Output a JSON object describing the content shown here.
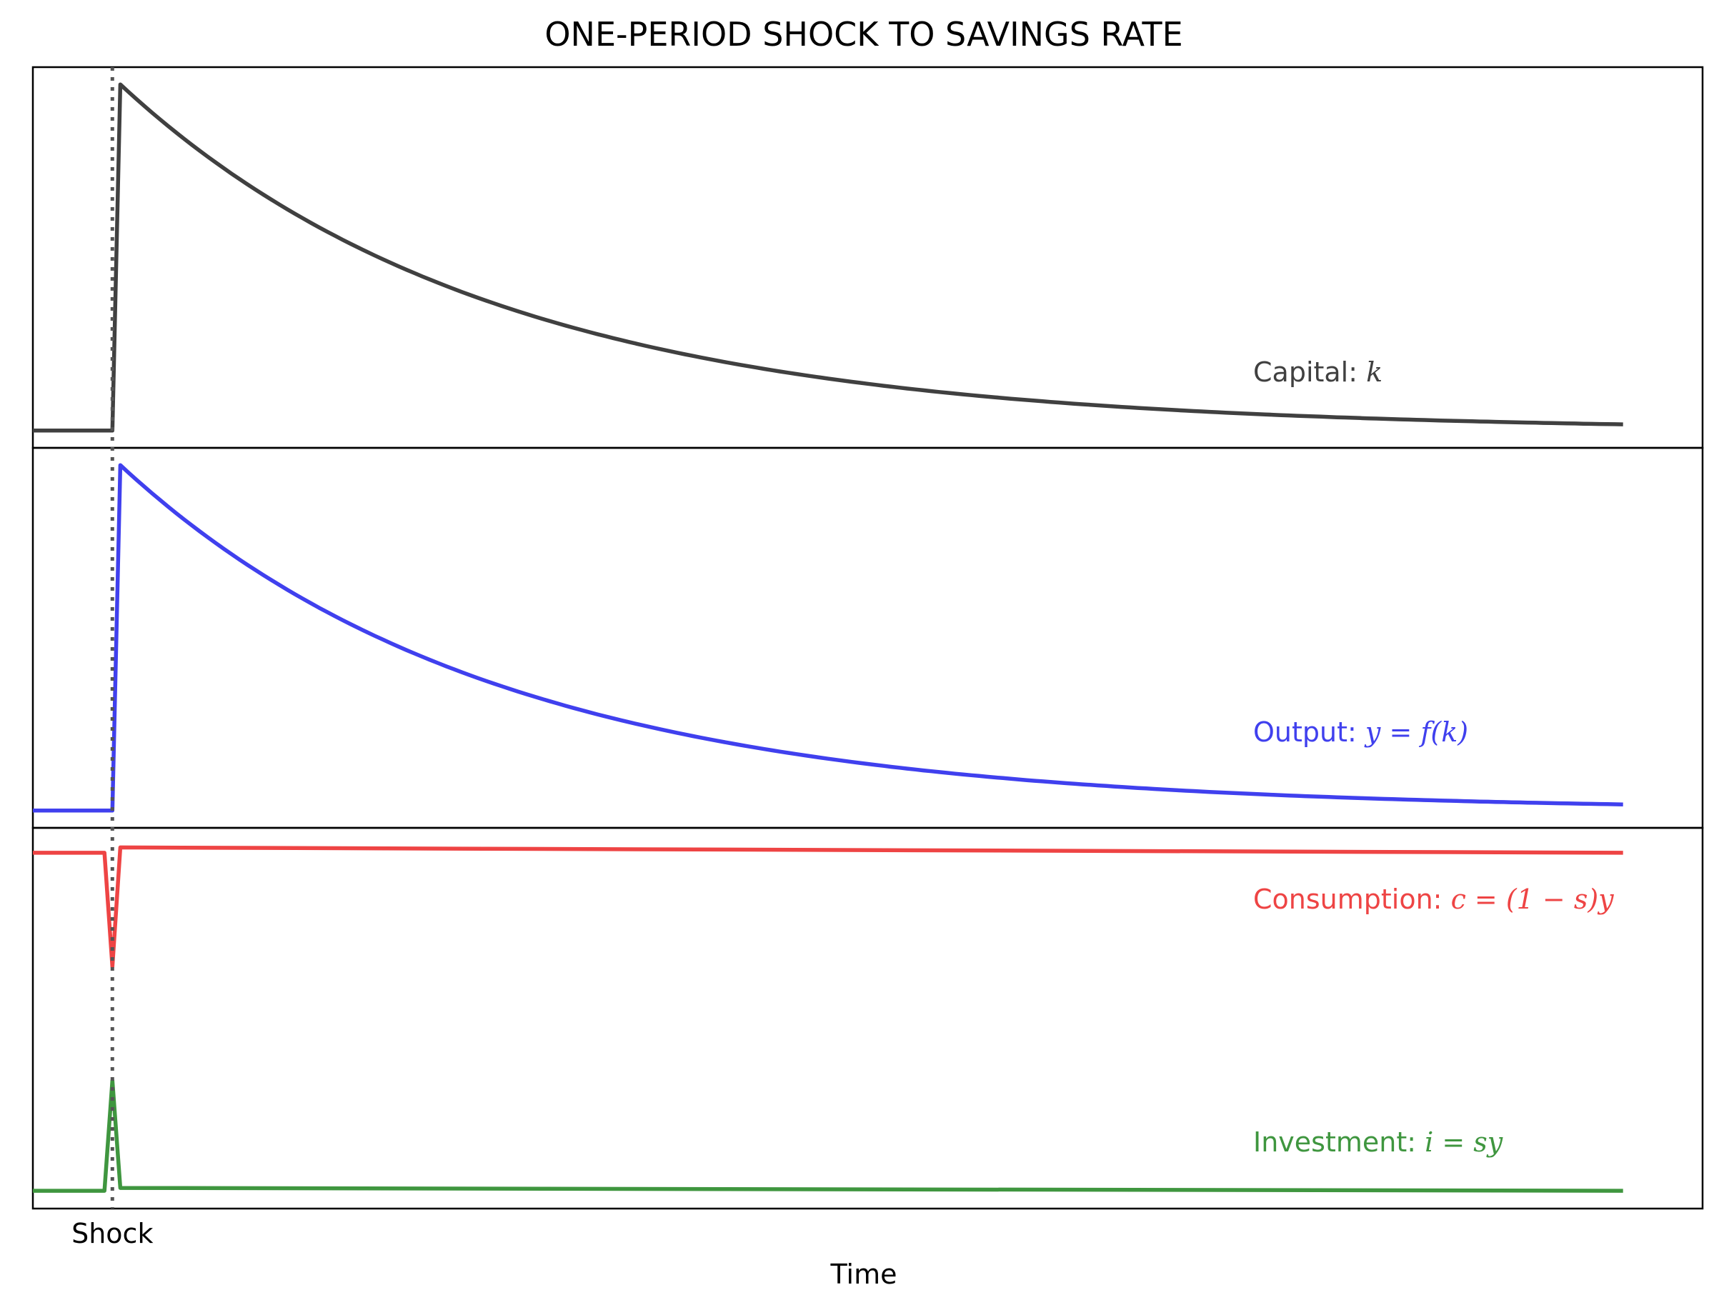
{
  "chart_data": {
    "type": "line",
    "title": "ONE-PERIOD SHOCK TO SAVINGS RATE",
    "xlabel": "Time",
    "ylabel": "",
    "grid": false,
    "legend": "none",
    "x_ticks": [
      {
        "x": 10,
        "label": "Shock"
      }
    ],
    "xlim": [
      0,
      210
    ],
    "shock_x": 10,
    "shared_x": true,
    "panels": [
      {
        "name": "capital",
        "series": [
          {
            "name": "Capital",
            "label_plain": "Capital: ",
            "label_math": "k",
            "color": "#404040",
            "values": {
              "pre_x": [
                0,
                10
              ],
              "pre_y": [
                0.0,
                0.0
              ],
              "jump_x": 11,
              "jump_y": 1.0,
              "post_x_end": 200,
              "decay_rate": 0.0213
            }
          }
        ],
        "ylim": [
          -0.05,
          1.05
        ]
      },
      {
        "name": "output",
        "series": [
          {
            "name": "Output",
            "label_plain": "Output: ",
            "label_math": "y = f(k)",
            "color": "#4040ee",
            "values": {
              "pre_x": [
                0,
                10
              ],
              "pre_y": [
                0.0,
                0.0
              ],
              "jump_x": 11,
              "jump_y": 1.0,
              "post_x_end": 200,
              "decay_rate": 0.0213
            }
          }
        ],
        "ylim": [
          -0.05,
          1.05
        ]
      },
      {
        "name": "consumption-investment",
        "series": [
          {
            "name": "Consumption",
            "label_plain": "Consumption: ",
            "label_math": "c = (1 − s)y",
            "color": "#ee4444",
            "points": [
              [
                0,
                1.0
              ],
              [
                9,
                1.0
              ],
              [
                10,
                0.68
              ],
              [
                11,
                1.015
              ],
              [
                200,
                1.0
              ]
            ]
          },
          {
            "name": "Investment",
            "label_plain": "Investment: ",
            "label_math": "i = sy",
            "color": "#3f963f",
            "points": [
              [
                0,
                0.05
              ],
              [
                9,
                0.05
              ],
              [
                10,
                0.36
              ],
              [
                11,
                0.058
              ],
              [
                200,
                0.05
              ]
            ]
          }
        ],
        "ylim": [
          0.0,
          1.07
        ]
      }
    ]
  }
}
